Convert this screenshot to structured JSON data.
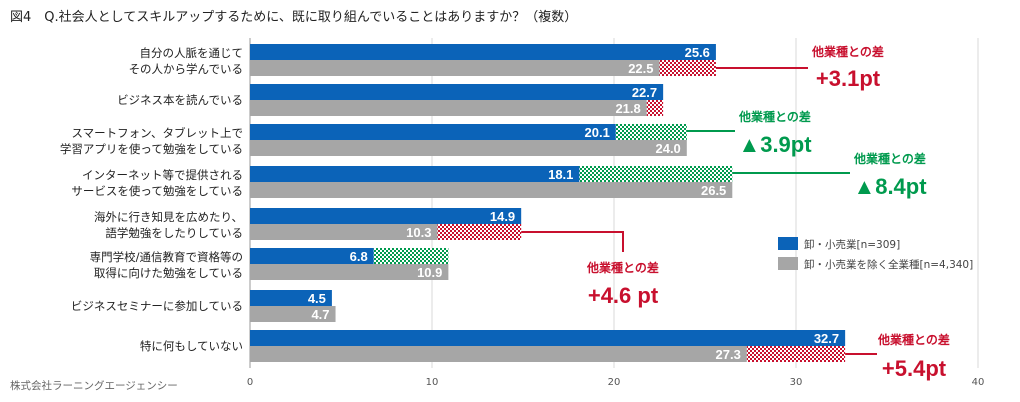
{
  "title": "図4　Q.社会人としてスキルアップするために、既に取り組んでいることはありますか？（複数）",
  "footer": "株式会社ラーニングエージェンシー",
  "colors": {
    "series1": "#0b63b8",
    "series2": "#a6a6a6",
    "up": "#c8102e",
    "down": "#009a4e"
  },
  "chart_data": {
    "type": "bar",
    "orientation": "horizontal",
    "categories": [
      [
        "自分の人脈を通じて",
        "その人から学んでいる"
      ],
      [
        "ビジネス本を読んでいる"
      ],
      [
        "スマートフォン、タブレット上で",
        "学習アプリを使って勉強をしている"
      ],
      [
        "インターネット等で提供される",
        "サービスを使って勉強をしている"
      ],
      [
        "海外に行き知見を広めたり、",
        "語学勉強をしたりしている"
      ],
      [
        "専門学校/通信教育で資格等の",
        "取得に向けた勉強をしている"
      ],
      [
        "ビジネスセミナーに参加している"
      ],
      [
        "特に何もしていない"
      ]
    ],
    "series": [
      {
        "name": "卸・小売業[n=309]",
        "values": [
          25.6,
          22.7,
          20.1,
          18.1,
          14.9,
          6.8,
          4.5,
          32.7
        ]
      },
      {
        "name": "卸・小売業を除く全業種[n=4,340]",
        "values": [
          22.5,
          21.8,
          24.0,
          26.5,
          10.3,
          10.9,
          4.7,
          27.3
        ]
      }
    ],
    "value_labels": {
      "series1": [
        "25.6",
        "22.7",
        "20.1",
        "18.1",
        "14.9",
        "6.8",
        "4.5",
        "32.7"
      ],
      "series2": [
        "22.5",
        "21.8",
        "24.0",
        "26.5",
        "10.3",
        "10.9",
        "4.7",
        "27.3"
      ]
    },
    "xlim": [
      0,
      40
    ],
    "xticks": [
      "0",
      "10",
      "20",
      "30",
      "40"
    ],
    "legend_position": "right",
    "annotations": [
      {
        "category_index": 0,
        "caption": "他業種との差",
        "value": "+3.1pt",
        "direction": "up"
      },
      {
        "category_index": 2,
        "caption": "他業種との差",
        "value": "▲3.9pt",
        "direction": "down"
      },
      {
        "category_index": 3,
        "caption": "他業種との差",
        "value": "▲8.4pt",
        "direction": "down"
      },
      {
        "category_index": 4,
        "caption": "他業種との差",
        "value": "+4.6 pt",
        "direction": "up"
      },
      {
        "category_index": 7,
        "caption": "他業種との差",
        "value": "+5.4pt",
        "direction": "up"
      }
    ]
  }
}
